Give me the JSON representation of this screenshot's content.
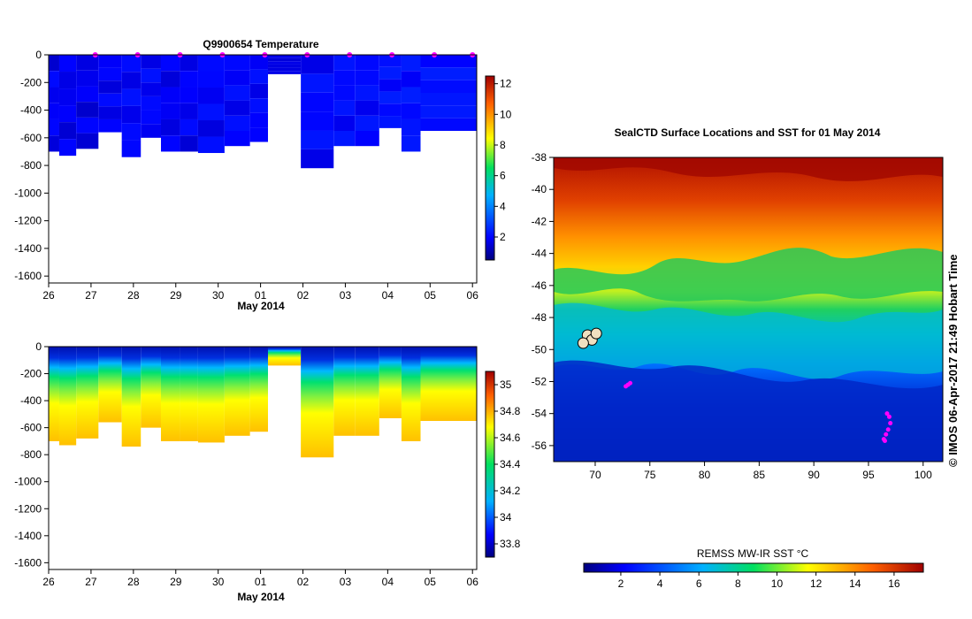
{
  "footer_credit": "© IMOS 06-Apr-2017 21:49 Hobart Time",
  "chart_data": [
    {
      "type": "heatmap",
      "title": "Q9900654  Temperature",
      "xlabel": "May 2014",
      "x_ticks": [
        "26",
        "27",
        "28",
        "29",
        "30",
        "01",
        "02",
        "03",
        "04",
        "05",
        "06"
      ],
      "y_ticks": [
        "0",
        "-200",
        "-400",
        "-600",
        "-800",
        "-1000",
        "-1200",
        "-1400",
        "-1600"
      ],
      "ylim": [
        -1650,
        0
      ],
      "colorbar_ticks": [
        "2",
        "4",
        "6",
        "8",
        "10",
        "12"
      ],
      "colorbar_range": [
        0.5,
        12.5
      ],
      "profile_marker_color": "#ff00ff",
      "profiles": [
        {
          "day": 26.05,
          "max_depth": 700,
          "top_temp": 1.4,
          "deep_temp": 2.1
        },
        {
          "day": 26.45,
          "max_depth": 730,
          "top_temp": 1.3,
          "deep_temp": 2.0
        },
        {
          "day": 26.85,
          "max_depth": 680,
          "top_temp": 1.2,
          "deep_temp": 2.0
        },
        {
          "day": 27.5,
          "max_depth": 560,
          "top_temp": 1.4,
          "deep_temp": 2.1
        },
        {
          "day": 27.95,
          "max_depth": 740,
          "top_temp": 1.5,
          "deep_temp": 2.2
        },
        {
          "day": 28.4,
          "max_depth": 600,
          "top_temp": 1.5,
          "deep_temp": 2.2
        },
        {
          "day": 28.9,
          "max_depth": 700,
          "top_temp": 1.3,
          "deep_temp": 2.0
        },
        {
          "day": 29.3,
          "max_depth": 700,
          "top_temp": 1.4,
          "deep_temp": 2.1
        },
        {
          "day": 29.75,
          "max_depth": 710,
          "top_temp": 1.5,
          "deep_temp": 2.2
        },
        {
          "day": 30.55,
          "max_depth": 660,
          "top_temp": 1.6,
          "deep_temp": 2.2
        },
        {
          "day": 30.95,
          "max_depth": 630,
          "top_temp": 1.6,
          "deep_temp": 2.2
        },
        {
          "day": 31.4,
          "max_depth": 140,
          "top_temp": 1.5,
          "deep_temp": 1.7
        },
        {
          "day": 32.5,
          "max_depth": 820,
          "top_temp": 1.6,
          "deep_temp": 2.3
        },
        {
          "day": 32.95,
          "max_depth": 660,
          "top_temp": 1.7,
          "deep_temp": 2.3
        },
        {
          "day": 33.5,
          "max_depth": 660,
          "top_temp": 1.7,
          "deep_temp": 2.3
        },
        {
          "day": 34.1,
          "max_depth": 530,
          "top_temp": 1.8,
          "deep_temp": 2.4
        },
        {
          "day": 34.55,
          "max_depth": 700,
          "top_temp": 1.8,
          "deep_temp": 2.4
        },
        {
          "day": 35.0,
          "max_depth": 550,
          "top_temp": 1.9,
          "deep_temp": 2.4
        }
      ]
    },
    {
      "type": "heatmap",
      "title": "",
      "xlabel": "May 2014",
      "x_ticks": [
        "26",
        "27",
        "28",
        "29",
        "30",
        "01",
        "02",
        "03",
        "04",
        "05",
        "06"
      ],
      "y_ticks": [
        "0",
        "-200",
        "-400",
        "-600",
        "-800",
        "-1000",
        "-1200",
        "-1400",
        "-1600"
      ],
      "ylim": [
        -1650,
        0
      ],
      "colorbar_ticks": [
        "33.8",
        "34",
        "34.2",
        "34.4",
        "34.6",
        "34.8",
        "35"
      ],
      "colorbar_range": [
        33.7,
        35.1
      ],
      "profiles": [
        {
          "day": 26.05,
          "max_depth": 700
        },
        {
          "day": 26.45,
          "max_depth": 730
        },
        {
          "day": 26.85,
          "max_depth": 680
        },
        {
          "day": 27.5,
          "max_depth": 560
        },
        {
          "day": 27.95,
          "max_depth": 740
        },
        {
          "day": 28.4,
          "max_depth": 600
        },
        {
          "day": 28.9,
          "max_depth": 700
        },
        {
          "day": 29.3,
          "max_depth": 700
        },
        {
          "day": 29.75,
          "max_depth": 710
        },
        {
          "day": 30.55,
          "max_depth": 660
        },
        {
          "day": 30.95,
          "max_depth": 630
        },
        {
          "day": 31.4,
          "max_depth": 140
        },
        {
          "day": 32.5,
          "max_depth": 820
        },
        {
          "day": 32.95,
          "max_depth": 660
        },
        {
          "day": 33.5,
          "max_depth": 660
        },
        {
          "day": 34.1,
          "max_depth": 530
        },
        {
          "day": 34.55,
          "max_depth": 700
        },
        {
          "day": 35.0,
          "max_depth": 550
        }
      ]
    },
    {
      "type": "heatmap",
      "title": "SealCTD Surface Locations and SST for 01 May 2014",
      "xlabel": "",
      "ylabel": "",
      "x_ticks": [
        "70",
        "75",
        "80",
        "85",
        "90",
        "95",
        "100"
      ],
      "y_ticks": [
        "-38",
        "-40",
        "-42",
        "-44",
        "-46",
        "-48",
        "-50",
        "-52",
        "-54",
        "-56"
      ],
      "xlim": [
        66.2,
        101.8
      ],
      "ylim": [
        -57.0,
        -38.0
      ],
      "colorbar_label": "REMSS MW-IR SST °C",
      "colorbar_ticks": [
        "2",
        "4",
        "6",
        "8",
        "10",
        "12",
        "14",
        "16"
      ],
      "colorbar_range": [
        0.1,
        17.5
      ],
      "land_points": [
        [
          69.3,
          -49.1
        ],
        [
          69.7,
          -49.4
        ],
        [
          68.9,
          -49.6
        ],
        [
          70.1,
          -49.0
        ]
      ],
      "seal_tracks": [
        {
          "lon": [
            72.8,
            73.0,
            73.2
          ],
          "lat": [
            -52.3,
            -52.2,
            -52.1
          ]
        },
        {
          "lon": [
            96.4,
            96.6,
            96.8,
            97.0,
            96.9,
            96.7,
            96.5
          ],
          "lat": [
            -55.6,
            -55.3,
            -55.0,
            -54.6,
            -54.2,
            -54.0,
            -55.7
          ]
        }
      ]
    }
  ]
}
